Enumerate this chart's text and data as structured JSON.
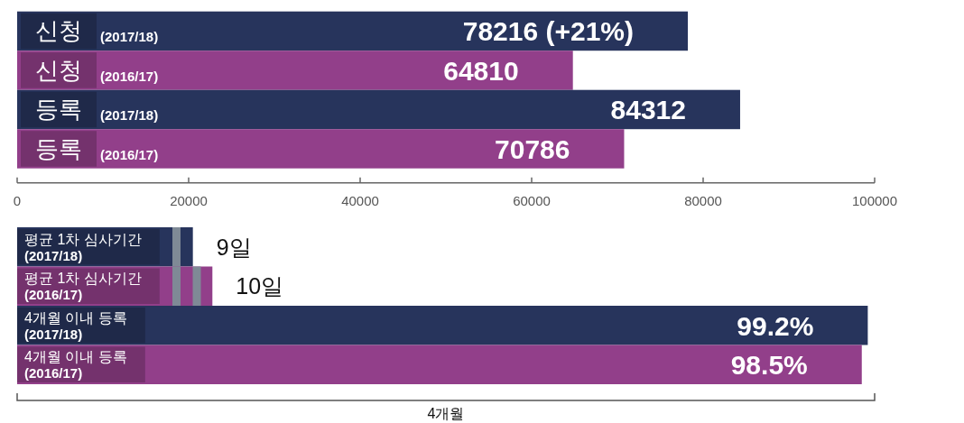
{
  "chart_data": [
    {
      "type": "bar",
      "orientation": "horizontal",
      "categories": [
        "신청 (2017/18)",
        "신청 (2016/17)",
        "등록 (2017/18)",
        "등록 (2016/17)"
      ],
      "values": [
        78216,
        64810,
        84312,
        70786
      ],
      "colors": [
        "#27345c",
        "#923f8a",
        "#27345c",
        "#923f8a"
      ],
      "value_labels": [
        "78216 (+21%)",
        "64810",
        "84312",
        "70786"
      ],
      "xlim": [
        0,
        100000
      ],
      "xticks": [
        0,
        20000,
        40000,
        60000,
        80000,
        100000
      ]
    },
    {
      "type": "bar",
      "orientation": "horizontal",
      "categories": [
        "평균 1차 심사기간 (2017/18)",
        "평균 1차 심사기간 (2016/17)"
      ],
      "values": [
        9,
        10
      ],
      "colors": [
        "#27345c",
        "#923f8a"
      ],
      "value_labels": [
        "9일",
        "10일"
      ]
    },
    {
      "type": "bar",
      "orientation": "horizontal",
      "categories": [
        "4개월 이내 등록 (2017/18)",
        "4개월 이내 등록 (2016/17)"
      ],
      "values": [
        99.2,
        98.5
      ],
      "colors": [
        "#27345c",
        "#923f8a"
      ],
      "value_labels": [
        "99.2%",
        "98.5%"
      ],
      "xlim": [
        0,
        100
      ],
      "annotations": [
        "4개월"
      ]
    }
  ]
}
